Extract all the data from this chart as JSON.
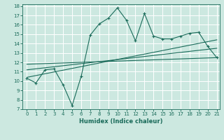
{
  "xlabel": "Humidex (Indice chaleur)",
  "xlim": [
    -0.5,
    21.3
  ],
  "ylim": [
    7,
    18.2
  ],
  "xticks": [
    0,
    1,
    2,
    3,
    4,
    5,
    6,
    7,
    8,
    9,
    10,
    11,
    12,
    13,
    14,
    15,
    16,
    17,
    18,
    19,
    20,
    21
  ],
  "yticks": [
    7,
    8,
    9,
    10,
    11,
    12,
    13,
    14,
    15,
    16,
    17,
    18
  ],
  "bg_color": "#cce8e0",
  "line_color": "#1a6b5a",
  "series1_x": [
    0,
    1,
    2,
    3,
    4,
    5,
    6,
    7,
    8,
    9,
    10,
    11,
    12,
    13,
    14,
    15,
    16,
    17,
    18,
    19,
    20,
    21
  ],
  "series1_y": [
    10.3,
    9.8,
    11.2,
    11.3,
    9.6,
    7.4,
    10.5,
    14.9,
    16.1,
    16.7,
    17.8,
    16.5,
    14.3,
    17.2,
    14.8,
    14.5,
    14.5,
    14.8,
    15.1,
    15.2,
    13.7,
    12.5
  ],
  "series2_x": [
    0,
    21
  ],
  "series2_y": [
    10.4,
    14.4
  ],
  "series3_x": [
    0,
    21
  ],
  "series3_y": [
    11.2,
    13.5
  ],
  "series4_x": [
    0,
    21
  ],
  "series4_y": [
    11.8,
    12.5
  ]
}
